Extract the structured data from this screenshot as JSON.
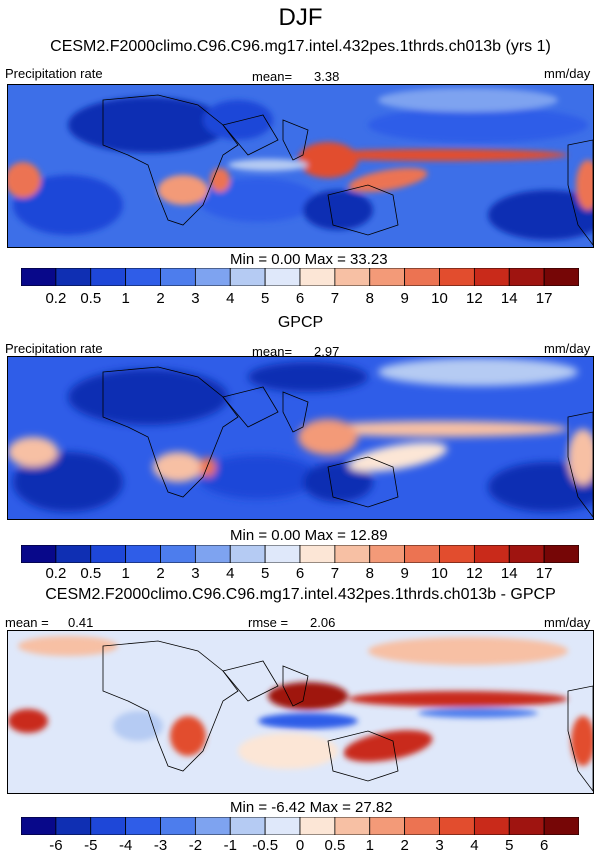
{
  "title": "DJF",
  "colors": {
    "seq": [
      "#08088a",
      "#0f2fb3",
      "#1e47d8",
      "#2f5de8",
      "#4d7ded",
      "#7ea3f0",
      "#b5cbf3",
      "#dfe8fa",
      "#fce6d6",
      "#f7c0a4",
      "#f39a78",
      "#ec7352",
      "#e24d2e",
      "#c92a1a",
      "#9f1410",
      "#760606"
    ],
    "div": [
      "#08088a",
      "#0f2fb3",
      "#1e47d8",
      "#2f5de8",
      "#4d7ded",
      "#7ea3f0",
      "#b5cbf3",
      "#dfe8fa",
      "#fce6d6",
      "#f7c0a4",
      "#f39a78",
      "#ec7352",
      "#e24d2e",
      "#c92a1a",
      "#9f1410",
      "#760606"
    ],
    "bg1": "#3d6fe8",
    "bg2": "#2f5de8",
    "bg3": "#dfe8fa"
  },
  "panels": [
    {
      "title": "CESM2.F2000climo.C96.C96.mg17.intel.432pes.1thrds.ch013b (yrs 1)",
      "left_label": "Precipitation rate",
      "mid_label": "mean=",
      "mid_value": "3.38",
      "right_label": "mm/day",
      "minmax": "Min =   0.00 Max =  33.23"
    },
    {
      "title": "GPCP",
      "left_label": "Precipitation rate",
      "mid_label": "mean=",
      "mid_value": "2.97",
      "right_label": "mm/day",
      "minmax": "Min =   0.00 Max =  12.89"
    },
    {
      "title": "CESM2.F2000climo.C96.C96.mg17.intel.432pes.1thrds.ch013b - GPCP",
      "left_label": "mean =",
      "left_value": "0.41",
      "mid_label": "rmse =",
      "mid_value": "2.06",
      "right_label": "mm/day",
      "minmax": "Min =  -6.42 Max =  27.82"
    }
  ],
  "chart_data": [
    {
      "type": "heatmap",
      "title": "CESM2.F2000climo.C96.C96.mg17.intel.432pes.1thrds.ch013b (yrs 1)",
      "variable": "Precipitation rate",
      "units": "mm/day",
      "mean": 3.38,
      "min": 0.0,
      "max": 33.23,
      "colorbar_levels": [
        "0.2",
        "0.5",
        "1",
        "2",
        "3",
        "4",
        "5",
        "6",
        "7",
        "8",
        "9",
        "10",
        "12",
        "14",
        "17"
      ]
    },
    {
      "type": "heatmap",
      "title": "GPCP",
      "variable": "Precipitation rate",
      "units": "mm/day",
      "mean": 2.97,
      "min": 0.0,
      "max": 12.89,
      "colorbar_levels": [
        "0.2",
        "0.5",
        "1",
        "2",
        "3",
        "4",
        "5",
        "6",
        "7",
        "8",
        "9",
        "10",
        "12",
        "14",
        "17"
      ]
    },
    {
      "type": "heatmap",
      "title": "CESM2.F2000climo.C96.C96.mg17.intel.432pes.1thrds.ch013b - GPCP",
      "units": "mm/day",
      "mean": 0.41,
      "rmse": 2.06,
      "min": -6.42,
      "max": 27.82,
      "colorbar_levels": [
        "-6",
        "-5",
        "-4",
        "-3",
        "-2",
        "-1",
        "-0.5",
        "0",
        "0.5",
        "1",
        "2",
        "3",
        "4",
        "5",
        "6"
      ]
    }
  ]
}
